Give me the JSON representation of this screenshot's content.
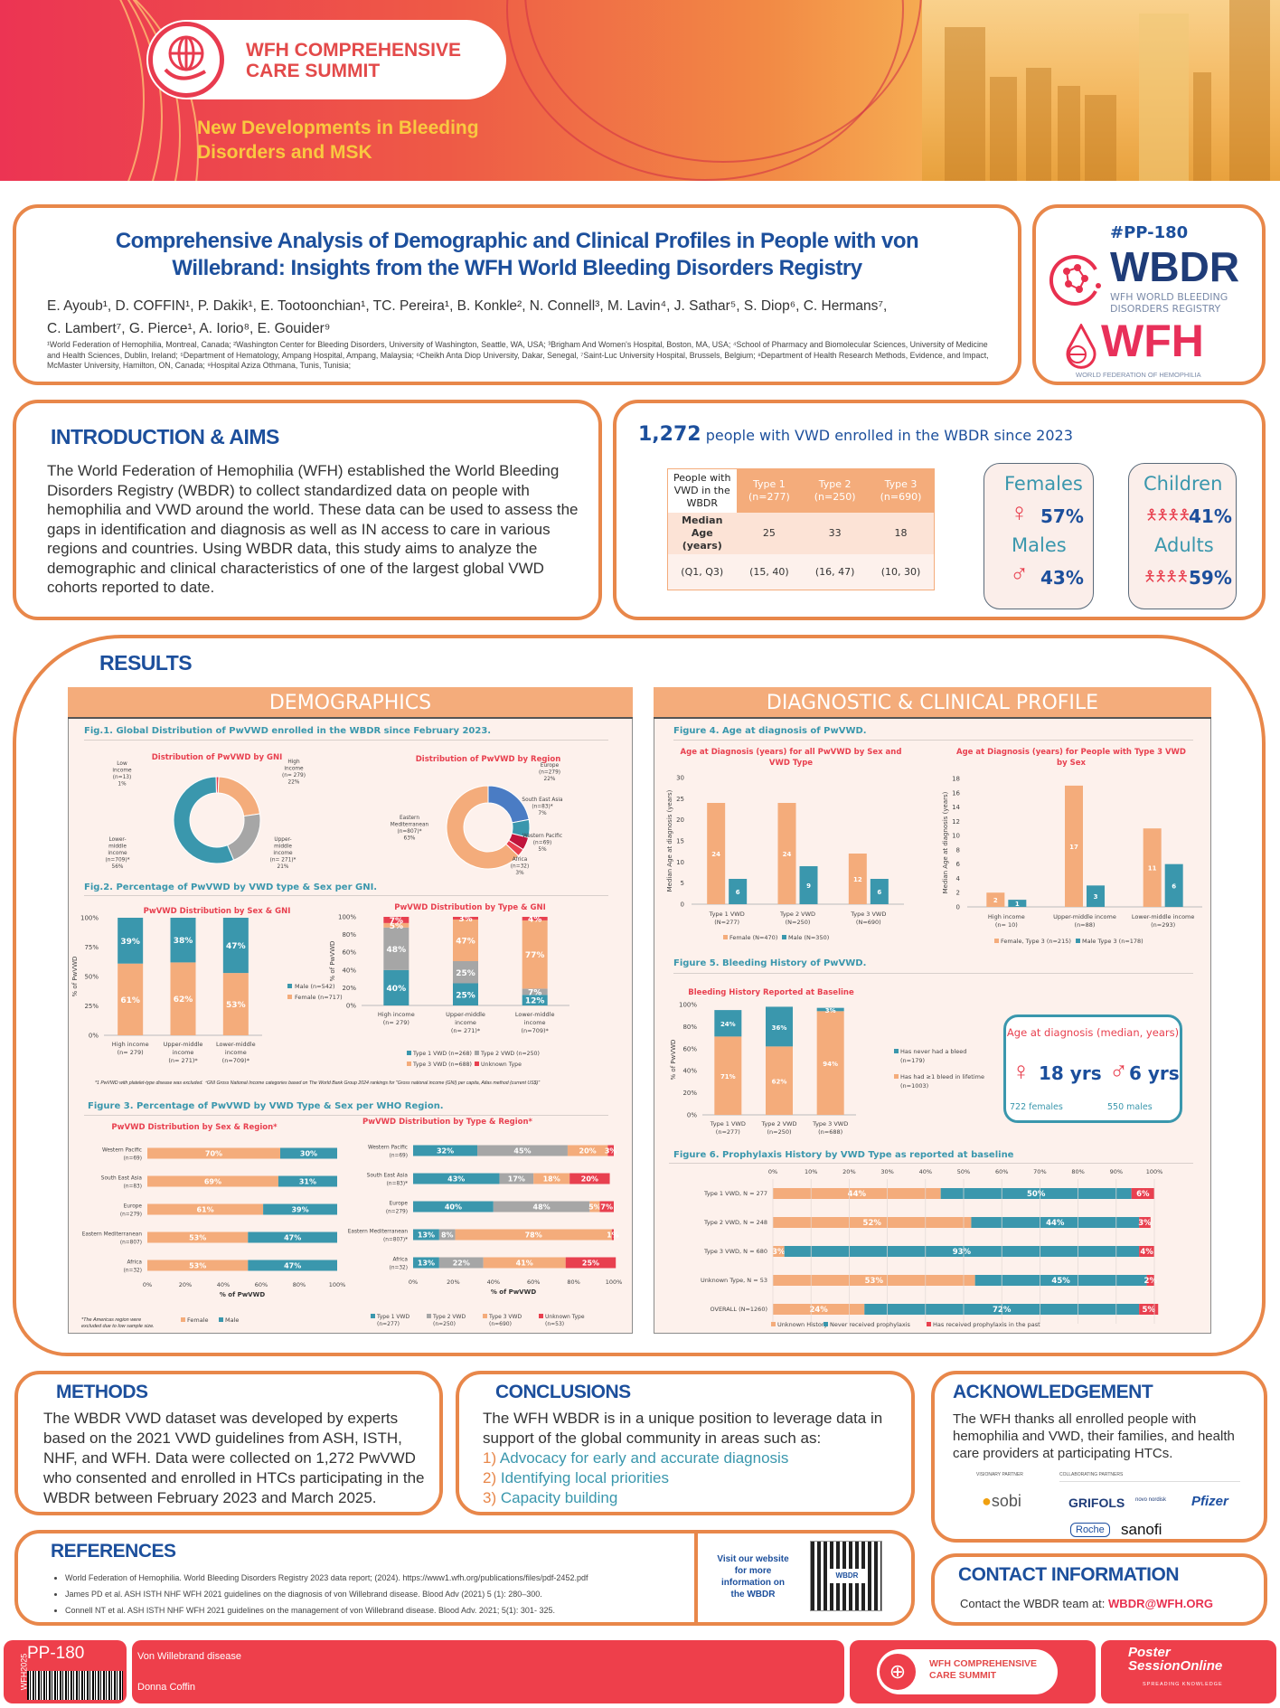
{
  "banner": {
    "event_line1": "WFH COMPREHENSIVE",
    "event_line2": "CARE SUMMIT",
    "subtitle_line1": "New Developments in Bleeding",
    "subtitle_line2": "Disorders and MSK"
  },
  "title": {
    "line1": "Comprehensive Analysis of Demographic and Clinical Profiles in People with von",
    "line2": "Willebrand: Insights from the WFH World Bleeding Disorders Registry",
    "authors_line1": "E. Ayoub¹, D. COFFIN¹, P. Dakik¹, E. Tootoonchian¹, TC. Pereira¹, B. Konkle², N. Connell³, M. Lavin⁴, J. Sathar⁵, S. Diop⁶, C. Hermans⁷,",
    "authors_line2": "C. Lambert⁷, G. Pierce¹, A. Iorio⁸, E. Gouider⁹",
    "affiliations": "¹World Federation of Hemophilia, Montreal, Canada; ²Washington Center for Bleeding Disorders, University of Washington, Seattle, WA, USA; ³Brigham And Women's Hospital, Boston, MA, USA; ⁴School of Pharmacy and Biomolecular Sciences, University of Medicine and Health Sciences, Dublin, Ireland; ⁵Department of Hematology, Ampang Hospital, Ampang, Malaysia; ⁶Cheikh Anta Diop University, Dakar, Senegal, ⁷Saint-Luc University Hospital, Brussels, Belgium; ⁸Department of Health Research Methods, Evidence, and Impact, McMaster University, Hamilton, ON, Canada; ⁹Hospital Aziza Othmana, Tunis, Tunisia;"
  },
  "logos": {
    "poster_id": "#PP-180",
    "wbdr": "WBDR",
    "wbdr_sub1": "WFH WORLD BLEEDING",
    "wbdr_sub2": "DISORDERS REGISTRY",
    "wfh": "WFH",
    "wfh_sub": "WORLD FEDERATION OF HEMOPHILIA"
  },
  "intro": {
    "heading": "INTRODUCTION & AIMS",
    "body": "The World Federation of Hemophilia (WFH) established the World Bleeding Disorders Registry (WBDR) to collect standardized data on people with hemophilia and VWD around the world. These data can be used to assess the gaps in identification and diagnosis as well as IN access to care in various regions and countries. Using WBDR data, this study aims to analyze the demographic and clinical characteristics of one of the largest global VWD cohorts reported to date."
  },
  "summary": {
    "count": "1,272",
    "headline": "people with VWD enrolled in the WBDR since 2023",
    "table": {
      "corner": "People with VWD in the WBDR",
      "columns": [
        {
          "type": "Type 1",
          "n": "(n=277)"
        },
        {
          "type": "Type 2",
          "n": "(n=250)"
        },
        {
          "type": "Type 3",
          "n": "(n=690)"
        }
      ],
      "rows": [
        {
          "label": "Median Age (years)",
          "values": [
            "25",
            "33",
            "18"
          ]
        },
        {
          "label": "(Q1, Q3)",
          "values": [
            "(15, 40)",
            "(16, 47)",
            "(10, 30)"
          ]
        }
      ]
    },
    "sex": {
      "females_label": "Females",
      "females_pct": "57%",
      "males_label": "Males",
      "males_pct": "43%"
    },
    "age": {
      "children_label": "Children",
      "children_pct": "41%",
      "adults_label": "Adults",
      "adults_pct": "59%"
    }
  },
  "results": {
    "heading": "RESULTS",
    "demographics_header": "DEMOGRAPHICS",
    "clinical_header": "DIAGNOSTIC & CLINICAL PROFILE",
    "fig1_title": "Fig.1. Global Distribution of PwVWD enrolled in the WBDR since February 2023.",
    "fig2_title": "Fig.2. Percentage of PwVWD by VWD type & Sex per GNI.",
    "fig2_footnote": "*1 PwVWD with platelet-type disease was excluded. ⁺GNI Gross National Income categories based on The World Bank Group 2024 rankings for \"Gross national income (GNI) per capita, Atlas method (current US$)\"",
    "fig3_title": "Figure 3. Percentage of PwVWD by VWD Type & Sex per WHO Region.",
    "fig3_footnote": "*The Americas region were excluded due to low sample size.",
    "fig4_title": "Figure 4. Age at diagnosis of PwVWD.",
    "fig5_title": "Figure 5. Bleeding History of PwVWD.",
    "fig6_title": "Figure 6. Prophylaxis History by VWD Type as reported at baseline",
    "age_box": {
      "title": "Age at diagnosis (median, years)",
      "female_value": "18 yrs",
      "female_caption": "722 females",
      "male_value": "6 yrs",
      "male_caption": "550 males"
    }
  },
  "chart_data": [
    {
      "id": "gni_donut",
      "type": "pie",
      "title": "Distribution of PwVWD by GNI",
      "slices": [
        {
          "label": "Low income",
          "n": "(n=13)",
          "pct": 1,
          "color": "#e8404f"
        },
        {
          "label": "High income",
          "n": "(n= 279)",
          "pct": 22,
          "color": "#f4ac7b"
        },
        {
          "label": "Upper-middle income",
          "n": "(n= 271)*",
          "pct": 21,
          "color": "#a6a6a6"
        },
        {
          "label": "Lower-middle income",
          "n": "(n=709)*",
          "pct": 56,
          "color": "#3a97ad"
        }
      ]
    },
    {
      "id": "region_donut",
      "type": "pie",
      "title": "Distribution of PwVWD by Region",
      "slices": [
        {
          "label": "Europe",
          "n": "(n=279)",
          "pct": 22,
          "color": "#4a7cc4"
        },
        {
          "label": "South East Asia",
          "n": "(n=83)*",
          "pct": 7,
          "color": "#3a97ad"
        },
        {
          "label": "Western Pacific",
          "n": "(n=69)",
          "pct": 5,
          "color": "#c0143c"
        },
        {
          "label": "Africa",
          "n": "(n=32)",
          "pct": 3,
          "color": "#e8404f"
        },
        {
          "label": "Eastern Mediterranean",
          "n": "(n=807)*",
          "pct": 63,
          "color": "#f4ac7b"
        }
      ]
    },
    {
      "id": "sex_gni",
      "type": "bar",
      "stacked": true,
      "title": "PwVWD Distribution by Sex & GNI",
      "ylabel": "% of PwVWD",
      "yticks": [
        "0%",
        "25%",
        "50%",
        "75%",
        "100%"
      ],
      "categories": [
        "High income|(n= 279)",
        "Upper-middle|income|(n= 271)*",
        "Lower-middle|income|(n=709)*"
      ],
      "series": [
        {
          "name": "Female (n=717)",
          "values": [
            61,
            62,
            53
          ],
          "color": "#f4ac7b"
        },
        {
          "name": "Male (n=542)",
          "values": [
            39,
            38,
            47
          ],
          "color": "#3a97ad"
        }
      ]
    },
    {
      "id": "type_gni",
      "type": "bar",
      "stacked": true,
      "title": "PwVWD Distribution by Type & GNI",
      "ylabel": "% of PwVWD",
      "yticks": [
        "0%",
        "20%",
        "40%",
        "60%",
        "80%",
        "100%"
      ],
      "categories": [
        "High income|(n= 279)",
        "Upper-middle|income|(n= 271)*",
        "Lower-middle|income|(n=709)*"
      ],
      "series": [
        {
          "name": "Type 1 VWD (n=268)",
          "values": [
            40,
            25,
            12
          ],
          "color": "#3a97ad"
        },
        {
          "name": "Type 2 VWD (n=250)",
          "values": [
            48,
            25,
            7
          ],
          "color": "#a6a6a6"
        },
        {
          "name": "Type 3 VWD (n=688)",
          "values": [
            5,
            47,
            77
          ],
          "color": "#f4ac7b"
        },
        {
          "name": "Unknown Type",
          "values": [
            7,
            3,
            4
          ],
          "color": "#e8404f"
        }
      ]
    },
    {
      "id": "sex_region",
      "type": "bar",
      "orientation": "horizontal",
      "stacked": true,
      "title": "PwVWD Distribution by Sex & Region*",
      "xlabel": "% of PwVWD",
      "xticks": [
        "0%",
        "20%",
        "40%",
        "60%",
        "80%",
        "100%"
      ],
      "categories": [
        "Western Pacific|(n=69)",
        "South East Asia|(n=83)",
        "Europe|(n=279)",
        "Eastern Mediterranean|(n=807)",
        "Africa|(n=32)"
      ],
      "series": [
        {
          "name": "Female",
          "values": [
            70,
            69,
            61,
            53,
            53
          ],
          "color": "#f4ac7b"
        },
        {
          "name": "Male",
          "values": [
            30,
            31,
            39,
            47,
            47
          ],
          "color": "#3a97ad"
        }
      ]
    },
    {
      "id": "type_region",
      "type": "bar",
      "orientation": "horizontal",
      "stacked": true,
      "title": "PwVWD Distribution by Type & Region*",
      "xlabel": "% of PwVWD",
      "xticks": [
        "0%",
        "20%",
        "40%",
        "60%",
        "80%",
        "100%"
      ],
      "categories": [
        "Western Pacific|(n=69)",
        "South East Asia|(n=83)*",
        "Europe|(n=279)",
        "Eastern Mediterranean|(n=807)*",
        "Africa|(n=32)"
      ],
      "series": [
        {
          "name": "Type 1 VWD|(n=277)",
          "values": [
            32,
            43,
            40,
            13,
            13
          ],
          "color": "#3a97ad"
        },
        {
          "name": "Type 2 VWD|(n=250)",
          "values": [
            45,
            17,
            48,
            8,
            22
          ],
          "color": "#a6a6a6"
        },
        {
          "name": "Type 3 VWD|(n=690)",
          "values": [
            20,
            18,
            5,
            78,
            41
          ],
          "color": "#f4ac7b"
        },
        {
          "name": "Unknown Type|(n=53)",
          "values": [
            3,
            20,
            7,
            1,
            25
          ],
          "color": "#e8404f"
        }
      ]
    },
    {
      "id": "age_dx_all",
      "type": "bar",
      "title": "Age at Diagnosis (years) for all PwVWD by Sex and VWD Type",
      "ylabel": "Median Age at diagnosis (years)",
      "ylim": [
        0,
        30
      ],
      "yticks": [
        "0",
        "5",
        "10",
        "15",
        "20",
        "25",
        "30"
      ],
      "categories": [
        "Type 1 VWD|(N=277)",
        "Type 2 VWD|(N=250)",
        "Type 3 VWD|(N=690)"
      ],
      "series": [
        {
          "name": "Female (N=470)",
          "values": [
            24,
            24,
            12
          ],
          "color": "#f4ac7b"
        },
        {
          "name": "Male (N=350)",
          "values": [
            6,
            9,
            6
          ],
          "color": "#3a97ad"
        }
      ]
    },
    {
      "id": "age_dx_type3",
      "type": "bar",
      "title": "Age at Diagnosis (years) for People with Type 3 VWD by Sex",
      "ylabel": "Median Age at diagnosis (years)",
      "ylim": [
        0,
        18
      ],
      "yticks": [
        "0",
        "2",
        "4",
        "6",
        "8",
        "10",
        "12",
        "14",
        "16",
        "18"
      ],
      "categories": [
        "High income|(n= 10)",
        "Upper-middle income|(n=88)",
        "Lower-middle income|(n=293)"
      ],
      "series": [
        {
          "name": "Female, Type 3 (n=215)",
          "values": [
            2,
            17,
            11
          ],
          "color": "#f4ac7b"
        },
        {
          "name": "Male Type 3 (n=178)",
          "values": [
            1,
            3,
            6
          ],
          "color": "#3a97ad"
        }
      ]
    },
    {
      "id": "bleed_history",
      "type": "bar",
      "stacked": true,
      "title": "Bleeding History Reported at Baseline",
      "ylabel": "% of PwVWD",
      "yticks": [
        "0%",
        "20%",
        "40%",
        "60%",
        "80%",
        "100%"
      ],
      "categories": [
        "Type 1 VWD|(n=277)",
        "Type 2 VWD|(n=250)",
        "Type 3  VWD|(n=688)"
      ],
      "series": [
        {
          "name": "Has had ≥1 bleed in lifetime|(n=1003)",
          "values": [
            71,
            62,
            94
          ],
          "color": "#f4ac7b"
        },
        {
          "name": "Has never had a bleed|(n=179)",
          "values": [
            24,
            36,
            3
          ],
          "color": "#3a97ad"
        }
      ]
    },
    {
      "id": "prophylaxis",
      "type": "bar",
      "orientation": "horizontal",
      "stacked": true,
      "title": "",
      "xticks": [
        "0%",
        "10%",
        "20%",
        "30%",
        "40%",
        "50%",
        "60%",
        "70%",
        "80%",
        "90%",
        "100%"
      ],
      "categories": [
        "Type 1 VWD, N = 277",
        "Type 2 VWD, N = 248",
        "Type 3 VWD, N = 680",
        "Unknown Type, N = 53",
        "OVERALL (N=1260)"
      ],
      "series": [
        {
          "name": "Unknown History",
          "values": [
            44,
            52,
            3,
            53,
            24
          ],
          "color": "#f4ac7b"
        },
        {
          "name": "Never received prophylaxis",
          "values": [
            50,
            44,
            93,
            45,
            72
          ],
          "color": "#3a97ad"
        },
        {
          "name": "Has received prophylaxis in the past",
          "values": [
            6,
            3,
            4,
            2,
            5
          ],
          "color": "#e8404f"
        }
      ]
    }
  ],
  "methods": {
    "heading": "METHODS",
    "body": "The WBDR VWD dataset was developed by experts based on the 2021 VWD guidelines from ASH, ISTH, NHF, and WFH. Data were collected on 1,272 PwVWD who consented and enrolled in HTCs participating in the WBDR between February 2023 and March 2025."
  },
  "conclusions": {
    "heading": "CONCLUSIONS",
    "body": "The WFH WBDR is in a unique position to leverage data in support of the global community in areas such as:",
    "items": [
      {
        "num": "1)",
        "text": "Advocacy for early and accurate diagnosis"
      },
      {
        "num": "2)",
        "text": "Identifying local priorities"
      },
      {
        "num": "3)",
        "text": "Capacity building"
      }
    ]
  },
  "acknowledgement": {
    "heading": "ACKNOWLEDGEMENT",
    "body": "The WFH thanks all enrolled people with hemophilia and VWD, their families, and health care providers at participating HTCs.",
    "visionary_label": "VISIONARY PARTNER",
    "collab_label": "COLLABORATING PARTNERS",
    "partners": [
      "sobi",
      "GRIFOLS",
      "novo nordisk",
      "Pfizer",
      "Roche",
      "sanofi"
    ]
  },
  "references": {
    "heading": "REFERENCES",
    "items": [
      "World Federation of Hemophilia. World Bleeding Disorders Registry 2023 data report; (2024). https://www1.wfh.org/publications/files/pdf-2452.pdf",
      "James PD et al. ASH ISTH NHF WFH 2021 guidelines on the diagnosis of von Willebrand disease. Blood Adv (2021) 5 (1): 280–300.",
      "Connell NT et al. ASH ISTH NHF WFH 2021 guidelines on the management of von Willebrand disease. Blood Adv. 2021; 5(1): 301- 325."
    ],
    "visit": "Visit our website for more information on the WBDR",
    "qr_label": "WBDR"
  },
  "contact": {
    "heading": "CONTACT INFORMATION",
    "text": "Contact the WBDR team at:",
    "email": "WBDR@WFH.ORG"
  },
  "footer": {
    "side_label": "WFH2025",
    "poster_id": "PP-180",
    "topic": "Von Willebrand disease",
    "presenter": "Donna Coffin",
    "summit_line1": "WFH COMPREHENSIVE",
    "summit_line2": "CARE SUMMIT",
    "pso_line1": "Poster",
    "pso_line2": "SessionOnline",
    "pso_tag": "SPREADING KNOWLEDGE"
  }
}
